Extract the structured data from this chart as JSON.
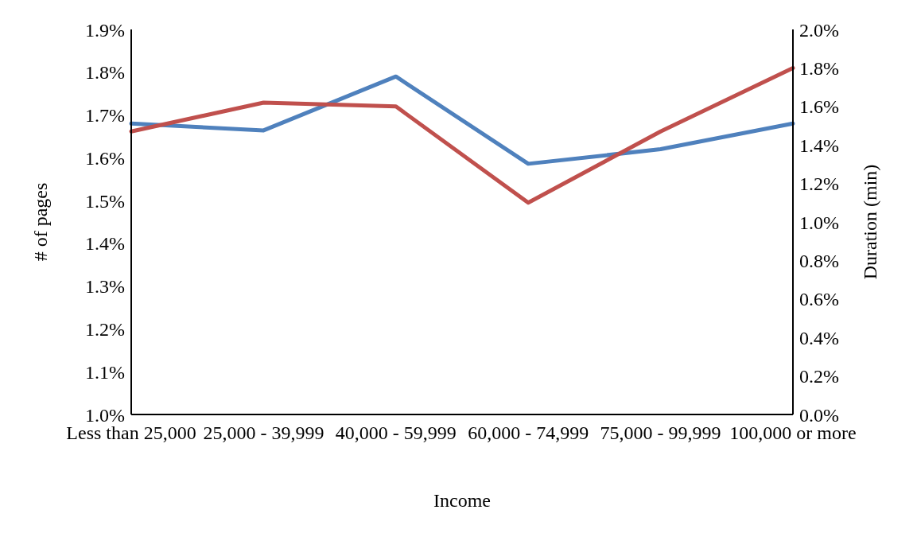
{
  "chart_data": {
    "type": "line",
    "xlabel": "Income",
    "ylabel": "# of pages",
    "y2label": "Duration (min)",
    "categories": [
      "Less than 25,000",
      "25,000 - 39,999",
      "40,000 - 59,999",
      "60,000 - 74,999",
      "75,000 - 99,999",
      "100,000 or more"
    ],
    "series": [
      {
        "color": "#4f81bd",
        "values": [
          1.68,
          1.664,
          1.79,
          1.586,
          1.62,
          1.68
        ]
      },
      {
        "color": "#c0504d",
        "axis": "y2",
        "values": [
          1.47,
          1.62,
          1.6,
          1.1,
          1.47,
          1.8
        ]
      }
    ],
    "ylim": [
      1.0,
      1.9
    ],
    "yticks": [
      {
        "value": 1.0,
        "label": "1.0%"
      },
      {
        "value": 1.1,
        "label": "1.1%"
      },
      {
        "value": 1.2,
        "label": "1.2%"
      },
      {
        "value": 1.3,
        "label": "1.3%"
      },
      {
        "value": 1.4,
        "label": "1.4%"
      },
      {
        "value": 1.5,
        "label": "1.5%"
      },
      {
        "value": 1.6,
        "label": "1.6%"
      },
      {
        "value": 1.7,
        "label": "1.7%"
      },
      {
        "value": 1.8,
        "label": "1.8%"
      },
      {
        "value": 1.9,
        "label": "1.9%"
      }
    ],
    "y2lim": [
      0.0,
      2.0
    ],
    "y2ticks": [
      {
        "value": 0.0,
        "label": "0.0%"
      },
      {
        "value": 0.2,
        "label": "0.2%"
      },
      {
        "value": 0.4,
        "label": "0.4%"
      },
      {
        "value": 0.6,
        "label": "0.6%"
      },
      {
        "value": 0.8,
        "label": "0.8%"
      },
      {
        "value": 1.0,
        "label": "1.0%"
      },
      {
        "value": 1.2,
        "label": "1.2%"
      },
      {
        "value": 1.4,
        "label": "1.4%"
      },
      {
        "value": 1.6,
        "label": "1.6%"
      },
      {
        "value": 1.8,
        "label": "1.8%"
      },
      {
        "value": 2.0,
        "label": "2.0%"
      }
    ],
    "grid": false,
    "legend": false,
    "marker": "none",
    "line_style": "solid"
  }
}
